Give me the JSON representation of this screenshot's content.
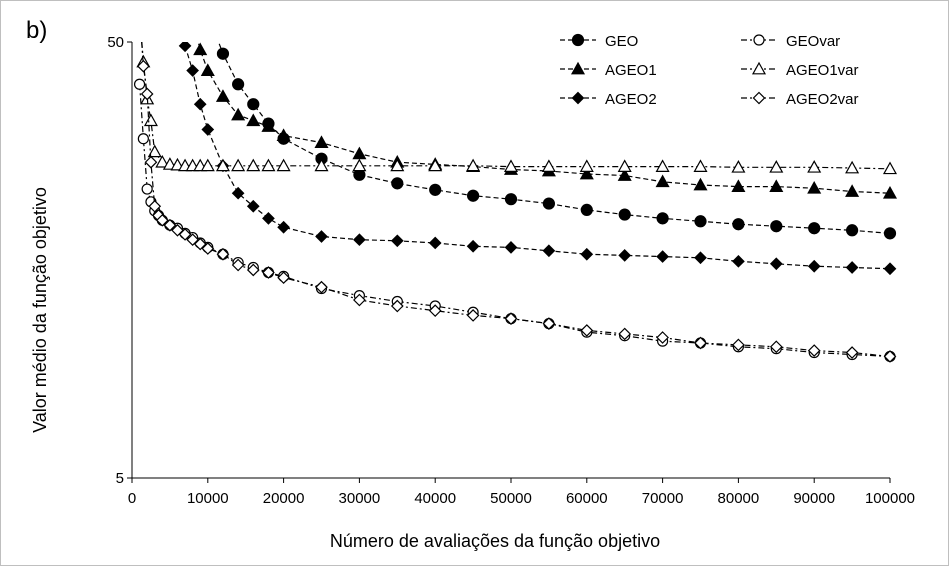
{
  "chart_data": {
    "type": "line",
    "panel_label": "b)",
    "xlabel": "Número de avaliações da função objetivo",
    "ylabel": "Valor médio da função objetivo",
    "xlim": [
      0,
      100000
    ],
    "ylim": [
      5,
      50
    ],
    "yscale": "log",
    "xticks": [
      0,
      10000,
      20000,
      30000,
      40000,
      50000,
      60000,
      70000,
      80000,
      90000,
      100000
    ],
    "xtick_labels": [
      "0",
      "10000",
      "20000",
      "30000",
      "40000",
      "50000",
      "60000",
      "70000",
      "80000",
      "90000",
      "100000"
    ],
    "yticks": [
      5,
      50
    ],
    "ytick_labels": [
      "5",
      "50"
    ],
    "grid": false,
    "legend_position": "top-right",
    "series": [
      {
        "name": "GEO",
        "marker": "circle",
        "filled": true,
        "dash": "dash",
        "color": "#000000",
        "x": [
          10000,
          12000,
          14000,
          16000,
          18000,
          20000,
          25000,
          30000,
          35000,
          40000,
          45000,
          50000,
          55000,
          60000,
          65000,
          70000,
          75000,
          80000,
          85000,
          90000,
          95000,
          100000
        ],
        "y": [
          58,
          47,
          40,
          36,
          32.5,
          30,
          27,
          24.8,
          23.7,
          22.9,
          22.2,
          21.8,
          21.3,
          20.6,
          20.1,
          19.7,
          19.4,
          19.1,
          18.9,
          18.7,
          18.5,
          18.2
        ]
      },
      {
        "name": "AGEO1",
        "marker": "triangle",
        "filled": true,
        "dash": "dash",
        "color": "#000000",
        "x": [
          8000,
          9000,
          10000,
          12000,
          14000,
          16000,
          18000,
          20000,
          25000,
          30000,
          35000,
          40000,
          45000,
          50000,
          55000,
          60000,
          65000,
          70000,
          75000,
          80000,
          85000,
          90000,
          95000,
          100000
        ],
        "y": [
          56,
          48,
          43,
          37.5,
          34,
          33,
          32,
          30.5,
          29.4,
          27.7,
          26.5,
          26.2,
          25.9,
          25.5,
          25.3,
          24.9,
          24.7,
          23.9,
          23.5,
          23.3,
          23.3,
          23.1,
          22.7,
          22.5
        ]
      },
      {
        "name": "AGEO2",
        "marker": "diamond",
        "filled": true,
        "dash": "dash",
        "color": "#000000",
        "x": [
          7000,
          8000,
          9000,
          10000,
          12000,
          14000,
          16000,
          18000,
          20000,
          25000,
          30000,
          35000,
          40000,
          45000,
          50000,
          55000,
          60000,
          65000,
          70000,
          75000,
          80000,
          85000,
          90000,
          95000,
          100000
        ],
        "y": [
          49,
          43,
          36,
          31.5,
          26,
          22.5,
          21,
          19.7,
          18.8,
          17.9,
          17.6,
          17.5,
          17.3,
          17.0,
          16.9,
          16.6,
          16.3,
          16.2,
          16.1,
          16.0,
          15.7,
          15.5,
          15.3,
          15.2,
          15.1
        ]
      },
      {
        "name": "GEOvar",
        "marker": "circle",
        "filled": false,
        "dash": "dashdot",
        "color": "#000000",
        "x": [
          1000,
          1500,
          2000,
          2500,
          3000,
          3500,
          4000,
          5000,
          6000,
          7000,
          8000,
          9000,
          10000,
          12000,
          14000,
          16000,
          18000,
          20000,
          25000,
          30000,
          35000,
          40000,
          45000,
          50000,
          55000,
          60000,
          65000,
          70000,
          75000,
          80000,
          85000,
          90000,
          95000,
          100000
        ],
        "y": [
          40,
          30,
          23,
          21.5,
          20.5,
          20,
          19.5,
          19,
          18.7,
          18.2,
          17.8,
          17.3,
          16.9,
          16.3,
          15.6,
          15.2,
          14.8,
          14.5,
          13.6,
          13.1,
          12.7,
          12.4,
          12.0,
          11.6,
          11.3,
          10.8,
          10.6,
          10.3,
          10.2,
          10.0,
          9.9,
          9.7,
          9.6,
          9.5
        ]
      },
      {
        "name": "AGEO1var",
        "marker": "triangle",
        "filled": false,
        "dash": "dashdot",
        "color": "#000000",
        "x": [
          1000,
          1500,
          2000,
          2500,
          3000,
          4000,
          5000,
          6000,
          7000,
          8000,
          9000,
          10000,
          12000,
          14000,
          16000,
          18000,
          20000,
          25000,
          30000,
          35000,
          40000,
          45000,
          50000,
          55000,
          60000,
          65000,
          70000,
          75000,
          80000,
          85000,
          90000,
          95000,
          100000
        ],
        "y": [
          58,
          45,
          37,
          33,
          28,
          26.5,
          26.2,
          26.1,
          26,
          26,
          26,
          26,
          26,
          26,
          26,
          26,
          26,
          26,
          26,
          26,
          26,
          26,
          25.9,
          25.9,
          25.9,
          25.9,
          25.9,
          25.9,
          25.8,
          25.8,
          25.8,
          25.7,
          25.6
        ]
      },
      {
        "name": "AGEO2var",
        "marker": "diamond",
        "filled": false,
        "dash": "dashdot",
        "color": "#000000",
        "x": [
          1000,
          1500,
          2000,
          2500,
          3000,
          3500,
          4000,
          5000,
          6000,
          7000,
          8000,
          9000,
          10000,
          12000,
          14000,
          16000,
          18000,
          20000,
          25000,
          30000,
          35000,
          40000,
          45000,
          50000,
          55000,
          60000,
          65000,
          70000,
          75000,
          80000,
          85000,
          90000,
          95000,
          100000
        ],
        "y": [
          58,
          44,
          38,
          26.5,
          21,
          20,
          19.5,
          19,
          18.5,
          18.1,
          17.6,
          17.2,
          16.8,
          16.3,
          15.4,
          15.0,
          14.8,
          14.4,
          13.7,
          12.8,
          12.4,
          12.1,
          11.8,
          11.6,
          11.3,
          10.9,
          10.7,
          10.5,
          10.2,
          10.1,
          10.0,
          9.8,
          9.7,
          9.5
        ]
      }
    ]
  }
}
